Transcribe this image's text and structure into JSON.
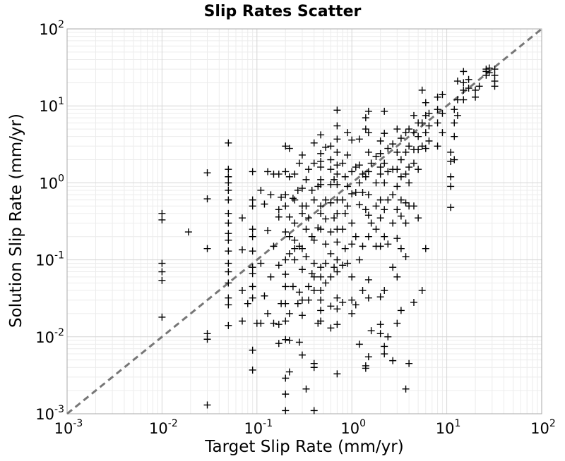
{
  "chart_data": {
    "type": "scatter",
    "title": "Slip Rates Scatter",
    "xlabel": "Target Slip Rate (mm/yr)",
    "ylabel": "Solution Slip Rate (mm/yr)",
    "xscale": "log",
    "yscale": "log",
    "xlim": [
      0.001,
      100
    ],
    "ylim": [
      0.001,
      100
    ],
    "grid": true,
    "minor_grid": true,
    "marker": "plus",
    "marker_color": "#000000",
    "reference_line": {
      "style": "dashed",
      "color": "#777777",
      "from": [
        0.001,
        0.001
      ],
      "to": [
        100,
        100
      ]
    },
    "x_ticks": [
      {
        "base": "10",
        "exp": "-3"
      },
      {
        "base": "10",
        "exp": "-2"
      },
      {
        "base": "10",
        "exp": "-1"
      },
      {
        "base": "10",
        "exp": "0"
      },
      {
        "base": "10",
        "exp": "1"
      },
      {
        "base": "10",
        "exp": "2"
      }
    ],
    "y_ticks": [
      {
        "base": "10",
        "exp": "-3"
      },
      {
        "base": "10",
        "exp": "-2"
      },
      {
        "base": "10",
        "exp": "-1"
      },
      {
        "base": "10",
        "exp": "0"
      },
      {
        "base": "10",
        "exp": "1"
      },
      {
        "base": "10",
        "exp": "2"
      }
    ],
    "points": [
      [
        0.01,
        0.4
      ],
      [
        0.01,
        0.33
      ],
      [
        0.01,
        0.09
      ],
      [
        0.01,
        0.07
      ],
      [
        0.01,
        0.054
      ],
      [
        0.01,
        0.018
      ],
      [
        0.019,
        0.23
      ],
      [
        0.03,
        1.35
      ],
      [
        0.03,
        0.62
      ],
      [
        0.03,
        0.14
      ],
      [
        0.03,
        0.011
      ],
      [
        0.03,
        0.0093
      ],
      [
        0.03,
        0.0013
      ],
      [
        0.05,
        3.3
      ],
      [
        0.05,
        1.5
      ],
      [
        0.05,
        1.2
      ],
      [
        0.05,
        1.0
      ],
      [
        0.05,
        0.8
      ],
      [
        0.05,
        0.6
      ],
      [
        0.05,
        0.4
      ],
      [
        0.05,
        0.3
      ],
      [
        0.05,
        0.22
      ],
      [
        0.05,
        0.18
      ],
      [
        0.05,
        0.13
      ],
      [
        0.05,
        0.09
      ],
      [
        0.05,
        0.07
      ],
      [
        0.05,
        0.05
      ],
      [
        0.05,
        0.032
      ],
      [
        0.05,
        0.026
      ],
      [
        0.05,
        0.014
      ],
      [
        0.07,
        0.35
      ],
      [
        0.07,
        0.135
      ],
      [
        0.07,
        0.04
      ],
      [
        0.07,
        0.016
      ],
      [
        0.08,
        0.027
      ],
      [
        0.09,
        1.4
      ],
      [
        0.09,
        0.6
      ],
      [
        0.09,
        0.5
      ],
      [
        0.09,
        0.25
      ],
      [
        0.09,
        0.2
      ],
      [
        0.09,
        0.13
      ],
      [
        0.09,
        0.08
      ],
      [
        0.09,
        0.066
      ],
      [
        0.09,
        0.045
      ],
      [
        0.09,
        0.032
      ],
      [
        0.09,
        0.0067
      ],
      [
        0.09,
        0.0037
      ],
      [
        0.1,
        0.015
      ],
      [
        0.11,
        0.8
      ],
      [
        0.11,
        0.09
      ],
      [
        0.11,
        0.015
      ],
      [
        0.12,
        0.53
      ],
      [
        0.12,
        0.034
      ],
      [
        0.13,
        1.4
      ],
      [
        0.13,
        0.24
      ],
      [
        0.13,
        0.02
      ],
      [
        0.14,
        0.7
      ],
      [
        0.14,
        0.06
      ],
      [
        0.15,
        1.3
      ],
      [
        0.15,
        0.15
      ],
      [
        0.15,
        0.015
      ],
      [
        0.17,
        1.3
      ],
      [
        0.17,
        0.45
      ],
      [
        0.17,
        0.36
      ],
      [
        0.17,
        0.085
      ],
      [
        0.17,
        0.0145
      ],
      [
        0.17,
        0.0082
      ],
      [
        0.18,
        0.65
      ],
      [
        0.18,
        0.027
      ],
      [
        0.2,
        3.0
      ],
      [
        0.2,
        1.4
      ],
      [
        0.2,
        0.7
      ],
      [
        0.2,
        0.5
      ],
      [
        0.2,
        0.23
      ],
      [
        0.2,
        0.1
      ],
      [
        0.2,
        0.065
      ],
      [
        0.2,
        0.045
      ],
      [
        0.2,
        0.027
      ],
      [
        0.2,
        0.016
      ],
      [
        0.2,
        0.0092
      ],
      [
        0.2,
        0.0029
      ],
      [
        0.2,
        0.0018
      ],
      [
        0.2,
        0.0011
      ],
      [
        0.22,
        2.8
      ],
      [
        0.22,
        1.2
      ],
      [
        0.22,
        0.36
      ],
      [
        0.22,
        0.2
      ],
      [
        0.22,
        0.12
      ],
      [
        0.22,
        0.02
      ],
      [
        0.22,
        0.009
      ],
      [
        0.22,
        0.0035
      ],
      [
        0.24,
        0.63
      ],
      [
        0.24,
        0.045
      ],
      [
        0.25,
        1.3
      ],
      [
        0.25,
        0.6
      ],
      [
        0.25,
        0.3
      ],
      [
        0.25,
        0.18
      ],
      [
        0.25,
        0.14
      ],
      [
        0.25,
        0.1
      ],
      [
        0.27,
        0.8
      ],
      [
        0.27,
        0.027
      ],
      [
        0.28,
        1.8
      ],
      [
        0.28,
        0.15
      ],
      [
        0.28,
        0.038
      ],
      [
        0.28,
        0.0085
      ],
      [
        0.3,
        2.3
      ],
      [
        0.3,
        0.85
      ],
      [
        0.3,
        0.5
      ],
      [
        0.3,
        0.4
      ],
      [
        0.3,
        0.14
      ],
      [
        0.3,
        0.075
      ],
      [
        0.3,
        0.03
      ],
      [
        0.3,
        0.019
      ],
      [
        0.3,
        0.0058
      ],
      [
        0.33,
        1.1
      ],
      [
        0.33,
        0.5
      ],
      [
        0.33,
        0.25
      ],
      [
        0.33,
        0.11
      ],
      [
        0.33,
        0.0021
      ],
      [
        0.35,
        1.5
      ],
      [
        0.35,
        0.35
      ],
      [
        0.35,
        0.045
      ],
      [
        0.35,
        0.03
      ],
      [
        0.38,
        0.8
      ],
      [
        0.38,
        0.2
      ],
      [
        0.38,
        0.066
      ],
      [
        0.4,
        3.3
      ],
      [
        0.4,
        1.8
      ],
      [
        0.4,
        0.6
      ],
      [
        0.4,
        0.18
      ],
      [
        0.4,
        0.09
      ],
      [
        0.4,
        0.06
      ],
      [
        0.4,
        0.04
      ],
      [
        0.4,
        0.0045
      ],
      [
        0.4,
        0.004
      ],
      [
        0.4,
        0.0011
      ],
      [
        0.44,
        0.9
      ],
      [
        0.44,
        0.26
      ],
      [
        0.44,
        0.015
      ],
      [
        0.47,
        4.2
      ],
      [
        0.47,
        2.4
      ],
      [
        0.47,
        1.9
      ],
      [
        0.47,
        1.6
      ],
      [
        0.47,
        1.1
      ],
      [
        0.47,
        0.95
      ],
      [
        0.47,
        0.5
      ],
      [
        0.47,
        0.4
      ],
      [
        0.47,
        0.25
      ],
      [
        0.47,
        0.08
      ],
      [
        0.47,
        0.06
      ],
      [
        0.47,
        0.04
      ],
      [
        0.47,
        0.03
      ],
      [
        0.47,
        0.022
      ],
      [
        0.47,
        0.016
      ],
      [
        0.53,
        2.9
      ],
      [
        0.53,
        0.6
      ],
      [
        0.53,
        0.34
      ],
      [
        0.53,
        0.16
      ],
      [
        0.53,
        0.09
      ],
      [
        0.53,
        0.05
      ],
      [
        0.6,
        3.0
      ],
      [
        0.6,
        2.0
      ],
      [
        0.6,
        1.5
      ],
      [
        0.6,
        0.95
      ],
      [
        0.6,
        0.55
      ],
      [
        0.6,
        0.23
      ],
      [
        0.6,
        0.12
      ],
      [
        0.6,
        0.06
      ],
      [
        0.6,
        0.025
      ],
      [
        0.6,
        0.013
      ],
      [
        0.65,
        1.1
      ],
      [
        0.65,
        0.35
      ],
      [
        0.65,
        0.08
      ],
      [
        0.7,
        8.8
      ],
      [
        0.7,
        5.5
      ],
      [
        0.7,
        3.7
      ],
      [
        0.7,
        2.5
      ],
      [
        0.7,
        1.7
      ],
      [
        0.7,
        1.3
      ],
      [
        0.7,
        0.95
      ],
      [
        0.7,
        0.6
      ],
      [
        0.7,
        0.4
      ],
      [
        0.7,
        0.25
      ],
      [
        0.7,
        0.17
      ],
      [
        0.7,
        0.1
      ],
      [
        0.7,
        0.07
      ],
      [
        0.7,
        0.032
      ],
      [
        0.7,
        0.023
      ],
      [
        0.7,
        0.0145
      ],
      [
        0.7,
        0.0033
      ],
      [
        0.8,
        1.8
      ],
      [
        0.8,
        0.6
      ],
      [
        0.8,
        0.25
      ],
      [
        0.8,
        0.085
      ],
      [
        0.8,
        0.028
      ],
      [
        0.85,
        1.2
      ],
      [
        0.85,
        0.4
      ],
      [
        0.85,
        0.14
      ],
      [
        0.9,
        4.5
      ],
      [
        0.9,
        2.3
      ],
      [
        0.9,
        0.9
      ],
      [
        0.9,
        0.5
      ],
      [
        0.9,
        0.09
      ],
      [
        1.0,
        3.6
      ],
      [
        1.0,
        1.4
      ],
      [
        1.0,
        0.72
      ],
      [
        1.0,
        0.3
      ],
      [
        1.0,
        0.16
      ],
      [
        1.0,
        0.06
      ],
      [
        1.0,
        0.03
      ],
      [
        1.0,
        0.02
      ],
      [
        1.1,
        1.6
      ],
      [
        1.1,
        0.75
      ],
      [
        1.1,
        0.2
      ],
      [
        1.1,
        0.026
      ],
      [
        1.2,
        3.7
      ],
      [
        1.2,
        1.7
      ],
      [
        1.2,
        1.0
      ],
      [
        1.2,
        0.52
      ],
      [
        1.2,
        0.1
      ],
      [
        1.2,
        0.008
      ],
      [
        1.3,
        1.3
      ],
      [
        1.3,
        0.75
      ],
      [
        1.3,
        0.15
      ],
      [
        1.3,
        0.04
      ],
      [
        1.4,
        7.0
      ],
      [
        1.4,
        5.0
      ],
      [
        1.4,
        1.2
      ],
      [
        1.4,
        0.45
      ],
      [
        1.4,
        0.0042
      ],
      [
        1.4,
        0.0039
      ],
      [
        1.5,
        8.5
      ],
      [
        1.5,
        4.5
      ],
      [
        1.5,
        2.5
      ],
      [
        1.5,
        1.4
      ],
      [
        1.5,
        0.7
      ],
      [
        1.5,
        0.38
      ],
      [
        1.5,
        0.2
      ],
      [
        1.5,
        0.055
      ],
      [
        1.5,
        0.032
      ],
      [
        1.5,
        0.0055
      ],
      [
        1.6,
        1.8
      ],
      [
        1.6,
        0.3
      ],
      [
        1.6,
        0.012
      ],
      [
        1.8,
        2.2
      ],
      [
        1.8,
        1.0
      ],
      [
        1.8,
        0.5
      ],
      [
        1.8,
        0.25
      ],
      [
        1.8,
        0.15
      ],
      [
        2.0,
        3.5
      ],
      [
        2.0,
        2.4
      ],
      [
        2.0,
        1.6
      ],
      [
        2.0,
        1.3
      ],
      [
        2.0,
        0.6
      ],
      [
        2.0,
        0.35
      ],
      [
        2.0,
        0.15
      ],
      [
        2.0,
        0.033
      ],
      [
        2.0,
        0.0145
      ],
      [
        2.0,
        0.011
      ],
      [
        2.2,
        8.5
      ],
      [
        2.2,
        4.4
      ],
      [
        2.2,
        1.8
      ],
      [
        2.2,
        1.0
      ],
      [
        2.2,
        0.45
      ],
      [
        2.2,
        0.2
      ],
      [
        2.2,
        0.04
      ],
      [
        2.2,
        0.0075
      ],
      [
        2.2,
        0.006
      ],
      [
        2.4,
        2.8
      ],
      [
        2.4,
        1.4
      ],
      [
        2.4,
        0.6
      ],
      [
        2.4,
        0.16
      ],
      [
        2.4,
        0.01
      ],
      [
        2.7,
        3.2
      ],
      [
        2.7,
        1.5
      ],
      [
        2.7,
        0.7
      ],
      [
        2.7,
        0.3
      ],
      [
        2.7,
        0.08
      ],
      [
        2.7,
        0.0049
      ],
      [
        3.0,
        5.0
      ],
      [
        3.0,
        2.5
      ],
      [
        3.0,
        1.5
      ],
      [
        3.0,
        0.9
      ],
      [
        3.0,
        0.45
      ],
      [
        3.0,
        0.19
      ],
      [
        3.0,
        0.06
      ],
      [
        3.0,
        0.015
      ],
      [
        3.3,
        3.8
      ],
      [
        3.3,
        2.0
      ],
      [
        3.3,
        1.2
      ],
      [
        3.3,
        0.6
      ],
      [
        3.3,
        0.37
      ],
      [
        3.3,
        0.14
      ],
      [
        3.3,
        0.022
      ],
      [
        3.7,
        4.5
      ],
      [
        3.7,
        2.5
      ],
      [
        3.7,
        1.3
      ],
      [
        3.7,
        0.55
      ],
      [
        3.7,
        0.3
      ],
      [
        3.7,
        0.11
      ],
      [
        3.7,
        0.0021
      ],
      [
        4.0,
        5.0
      ],
      [
        4.0,
        3.0
      ],
      [
        4.0,
        1.6
      ],
      [
        4.0,
        1.0
      ],
      [
        4.0,
        0.5
      ],
      [
        4.0,
        0.0045
      ],
      [
        4.5,
        7.5
      ],
      [
        4.5,
        4.5
      ],
      [
        4.5,
        2.7
      ],
      [
        4.5,
        1.8
      ],
      [
        4.5,
        0.5
      ],
      [
        4.5,
        0.028
      ],
      [
        5.0,
        6.0
      ],
      [
        5.0,
        4.0
      ],
      [
        5.0,
        2.7
      ],
      [
        5.0,
        1.5
      ],
      [
        5.0,
        0.35
      ],
      [
        5.5,
        16.0
      ],
      [
        5.5,
        6.0
      ],
      [
        5.5,
        3.0
      ],
      [
        5.5,
        0.04
      ],
      [
        6.0,
        11.0
      ],
      [
        6.0,
        7.5
      ],
      [
        6.0,
        4.5
      ],
      [
        6.0,
        2.8
      ],
      [
        6.0,
        0.14
      ],
      [
        6.5,
        8.0
      ],
      [
        6.5,
        5.5
      ],
      [
        6.5,
        3.5
      ],
      [
        8.0,
        13.0
      ],
      [
        8.0,
        9.0
      ],
      [
        8.0,
        6.0
      ],
      [
        8.0,
        3.0
      ],
      [
        9.0,
        14.0
      ],
      [
        9.0,
        8.0
      ],
      [
        9.0,
        4.5
      ],
      [
        11.0,
        2.5
      ],
      [
        11.0,
        1.9
      ],
      [
        11.0,
        1.2
      ],
      [
        11.0,
        0.9
      ],
      [
        11.0,
        0.48
      ],
      [
        12.0,
        9.0
      ],
      [
        12.0,
        6.0
      ],
      [
        12.0,
        4.0
      ],
      [
        12.0,
        2.0
      ],
      [
        13.0,
        21.0
      ],
      [
        13.0,
        12.0
      ],
      [
        13.0,
        7.5
      ],
      [
        15.0,
        28.0
      ],
      [
        15.0,
        20.0
      ],
      [
        15.0,
        16.0
      ],
      [
        15.0,
        12.0
      ],
      [
        17.0,
        22.0
      ],
      [
        17.0,
        17.0
      ],
      [
        20.0,
        16.0
      ],
      [
        20.0,
        13.0
      ],
      [
        22.0,
        18.0
      ],
      [
        26.0,
        30.0
      ],
      [
        26.0,
        28.0
      ],
      [
        26.0,
        25.0
      ],
      [
        28.0,
        31.0
      ],
      [
        28.0,
        27.0
      ],
      [
        32.0,
        30.0
      ],
      [
        32.0,
        25.0
      ],
      [
        32.0,
        21.0
      ],
      [
        32.0,
        18.0
      ]
    ]
  }
}
